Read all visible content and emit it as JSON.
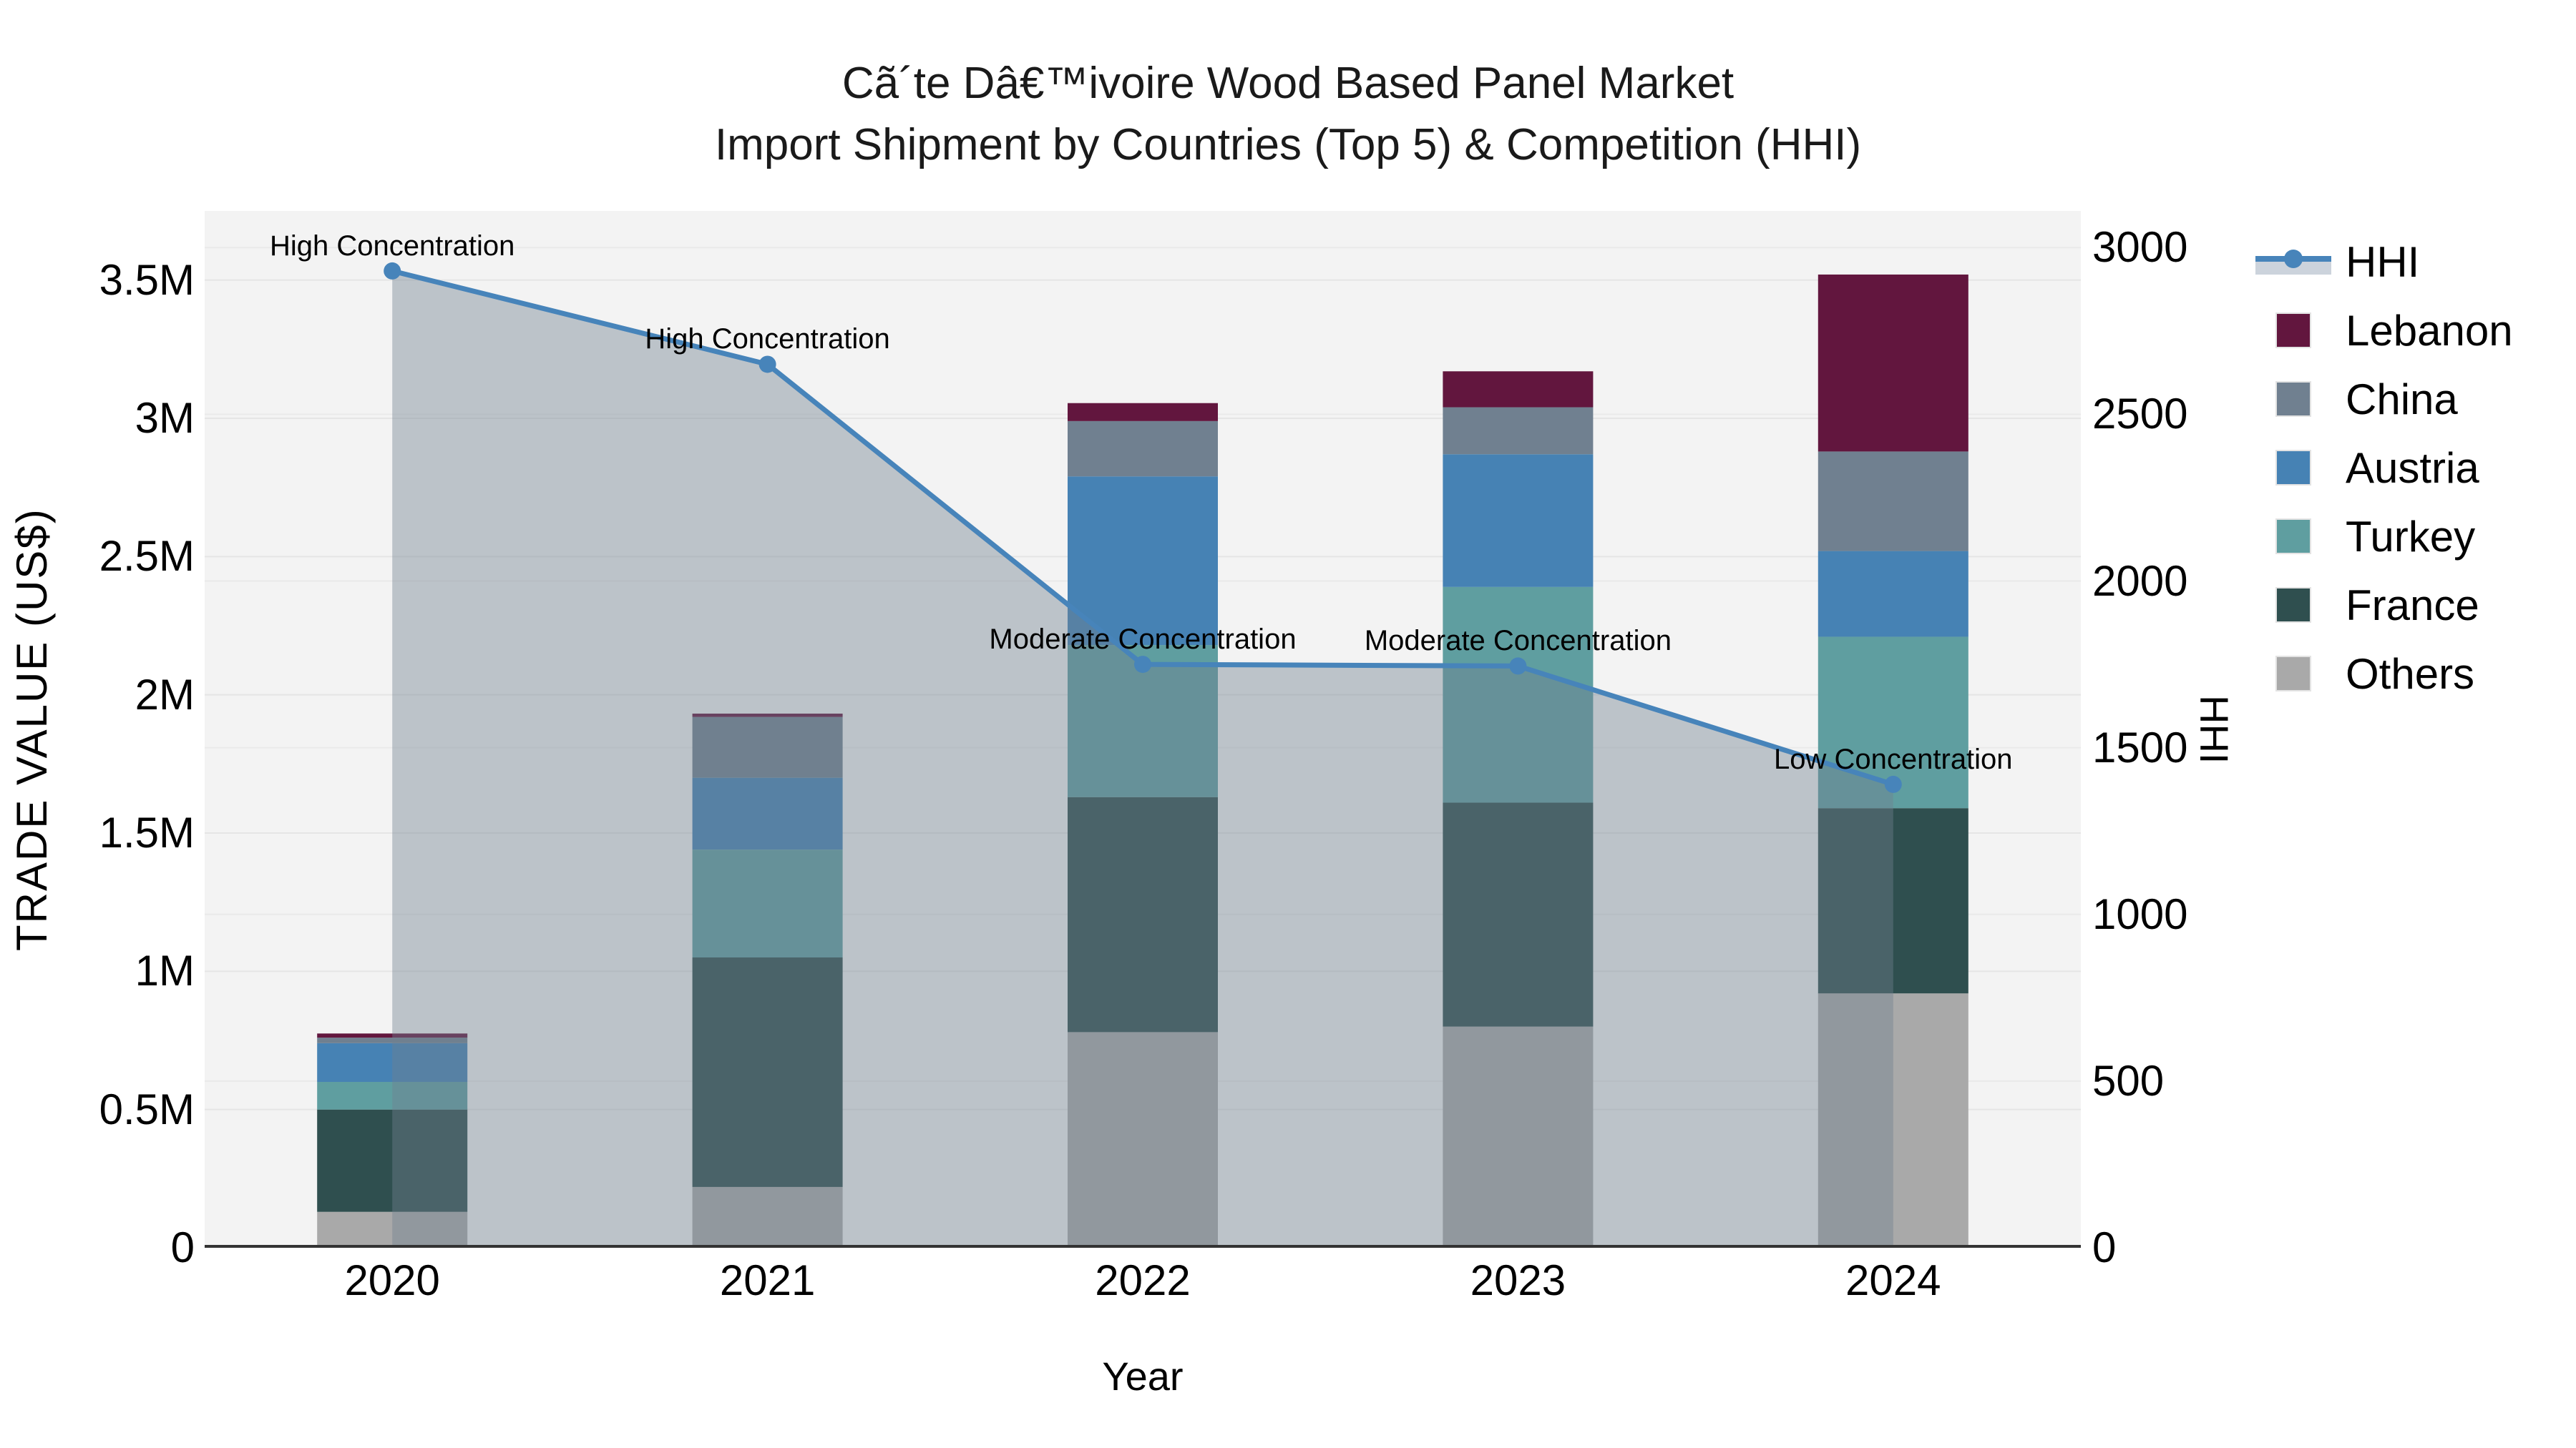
{
  "title": "Cã´te Dâ€™ivoire Wood Based Panel Market",
  "subtitle": "Import Shipment by Countries (Top 5) & Competition (HHI)",
  "axes": {
    "x": {
      "title": "Year",
      "tick_labels": [
        "2020",
        "2021",
        "2022",
        "2023",
        "2024"
      ]
    },
    "y_left": {
      "title": "TRADE VALUE (US$)",
      "unit": "million US$",
      "tick_labels": [
        "0",
        "0.5M",
        "1M",
        "1.5M",
        "2M",
        "2.5M",
        "3M",
        "3.5M"
      ],
      "tick_values": [
        0,
        0.5,
        1,
        1.5,
        2,
        2.5,
        3,
        3.5
      ],
      "range": [
        0,
        3.75
      ]
    },
    "y_right": {
      "title": "HHI",
      "tick_labels": [
        "0",
        "500",
        "1000",
        "1500",
        "2000",
        "2500",
        "3000"
      ],
      "tick_values": [
        0,
        500,
        1000,
        1500,
        2000,
        2500,
        3000
      ],
      "range": [
        0,
        3110
      ]
    }
  },
  "legend": {
    "items": [
      {
        "label": "HHI",
        "type": "line-area",
        "color": "#4784BA",
        "area_color": "#ccd3dc"
      },
      {
        "label": "Lebanon",
        "type": "swatch",
        "color": "#62163E"
      },
      {
        "label": "China",
        "type": "swatch",
        "color": "#708090"
      },
      {
        "label": "Austria",
        "type": "swatch",
        "color": "#4682B4"
      },
      {
        "label": "Turkey",
        "type": "swatch",
        "color": "#5F9EA0"
      },
      {
        "label": "France",
        "type": "swatch",
        "color": "#2F4F4F"
      },
      {
        "label": "Others",
        "type": "swatch",
        "color": "#A9A9A9"
      }
    ]
  },
  "chart_data": {
    "type": "combo: stacked-bar + line",
    "categories": [
      "2020",
      "2021",
      "2022",
      "2023",
      "2024"
    ],
    "bar_unit": "million US$",
    "series": [
      {
        "name": "Others",
        "color": "#A9A9A9",
        "values": [
          0.13,
          0.22,
          0.78,
          0.8,
          0.92
        ]
      },
      {
        "name": "France",
        "color": "#2F4F4F",
        "values": [
          0.37,
          0.83,
          0.85,
          0.81,
          0.67
        ]
      },
      {
        "name": "Turkey",
        "color": "#5F9EA0",
        "values": [
          0.1,
          0.39,
          0.55,
          0.78,
          0.62
        ]
      },
      {
        "name": "Austria",
        "color": "#4682B4",
        "values": [
          0.14,
          0.26,
          0.61,
          0.48,
          0.31
        ]
      },
      {
        "name": "China",
        "color": "#708090",
        "values": [
          0.02,
          0.22,
          0.2,
          0.17,
          0.36
        ]
      },
      {
        "name": "Lebanon",
        "color": "#62163E",
        "values": [
          0.015,
          0.012,
          0.065,
          0.13,
          0.64
        ]
      }
    ],
    "line_series": {
      "name": "HHI",
      "axis": "right",
      "color": "#4784BA",
      "area_fill": "rgba(112,128,144,0.42)",
      "values": [
        2930,
        2650,
        1750,
        1745,
        1390
      ]
    },
    "annotations": [
      {
        "category": "2020",
        "text": "High Concentration"
      },
      {
        "category": "2021",
        "text": "High Concentration"
      },
      {
        "category": "2022",
        "text": "Moderate Concentration"
      },
      {
        "category": "2023",
        "text": "Moderate Concentration"
      },
      {
        "category": "2024",
        "text": "Low Concentration"
      }
    ],
    "layout": {
      "plot_bg": "#f3f3f3",
      "grid_color": "#e5e5e5",
      "grid_color_right": "#eaeaea",
      "axis_line_color": "#333333",
      "grid": "on",
      "legend_position": "right"
    }
  }
}
